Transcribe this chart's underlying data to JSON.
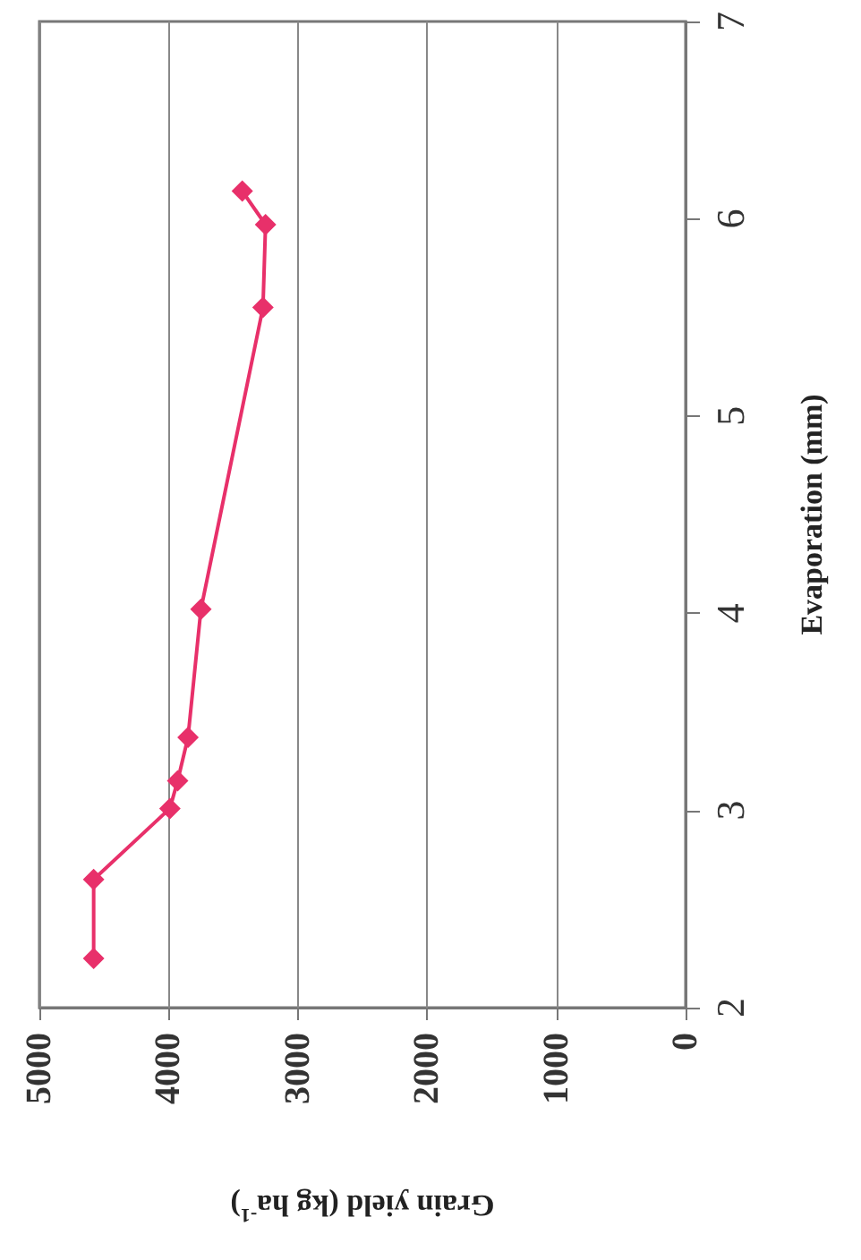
{
  "chart_data": {
    "type": "line",
    "xlabel": "Grain yield (kg ha$^{-1}$)",
    "ylabel": "Evaporation (mm)",
    "x": [
      4580,
      4580,
      3990,
      3930,
      3850,
      3750,
      3270,
      3250,
      3430
    ],
    "series": [
      {
        "color": "#e8306a",
        "values": [
          2.25,
          2.65,
          3.01,
          3.15,
          3.37,
          4.02,
          5.55,
          5.97,
          6.14
        ]
      }
    ],
    "xlim": [
      5000,
      0
    ],
    "xticks": [
      5000,
      4000,
      3000,
      2000,
      1000,
      0
    ],
    "ylim": [
      2,
      7
    ],
    "yticks": [
      2,
      3,
      4,
      5,
      6,
      7
    ],
    "grid": "x",
    "marker": "diamond",
    "line_style": "solid"
  }
}
